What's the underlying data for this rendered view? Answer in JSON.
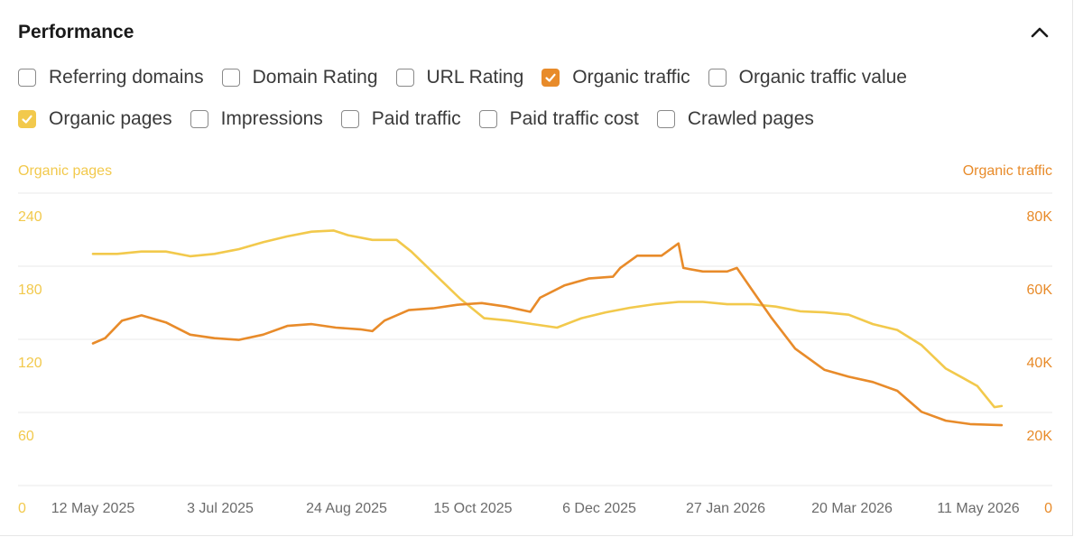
{
  "header": {
    "title": "Performance",
    "collapse_icon": "chevron-up-icon"
  },
  "checkboxes": [
    {
      "label": "Referring domains",
      "checked": false,
      "color": ""
    },
    {
      "label": "Domain Rating",
      "checked": false,
      "color": ""
    },
    {
      "label": "URL Rating",
      "checked": false,
      "color": ""
    },
    {
      "label": "Organic traffic",
      "checked": true,
      "color": "#e88b2a"
    },
    {
      "label": "Organic traffic value",
      "checked": false,
      "color": ""
    },
    {
      "label": "Organic pages",
      "checked": true,
      "color": "#f2c94c"
    },
    {
      "label": "Impressions",
      "checked": false,
      "color": ""
    },
    {
      "label": "Paid traffic",
      "checked": false,
      "color": ""
    },
    {
      "label": "Paid traffic cost",
      "checked": false,
      "color": ""
    },
    {
      "label": "Crawled pages",
      "checked": false,
      "color": ""
    }
  ],
  "chart_data": {
    "type": "line",
    "left_axis": {
      "label": "Organic pages",
      "ticks": [
        "0",
        "60",
        "120",
        "180",
        "240"
      ],
      "range": [
        0,
        270
      ],
      "color": "#f2c94c"
    },
    "right_axis": {
      "label": "Organic traffic",
      "ticks": [
        "0",
        "20K",
        "40K",
        "60K",
        "80K"
      ],
      "range": [
        0,
        90000
      ],
      "color": "#e88b2a"
    },
    "x_ticks": [
      "12 May 2025",
      "3 Jul 2025",
      "24 Aug 2025",
      "15 Oct 2025",
      "6 Dec 2025",
      "27 Jan 2026",
      "20 Mar 2026",
      "11 May 2026"
    ],
    "x_range": [
      "2025-05-12",
      "2026-05-11"
    ],
    "grid": true,
    "series": [
      {
        "name": "Organic pages",
        "axis": "left",
        "color": "#f2c94c",
        "points": [
          [
            "2025-05-12",
            198
          ],
          [
            "2025-05-22",
            198
          ],
          [
            "2025-06-01",
            200
          ],
          [
            "2025-06-11",
            200
          ],
          [
            "2025-06-21",
            196
          ],
          [
            "2025-07-01",
            198
          ],
          [
            "2025-07-11",
            202
          ],
          [
            "2025-07-21",
            208
          ],
          [
            "2025-07-31",
            213
          ],
          [
            "2025-08-10",
            217
          ],
          [
            "2025-08-19",
            218
          ],
          [
            "2025-08-25",
            214
          ],
          [
            "2025-09-04",
            210
          ],
          [
            "2025-09-14",
            210
          ],
          [
            "2025-09-20",
            200
          ],
          [
            "2025-09-30",
            180
          ],
          [
            "2025-10-10",
            160
          ],
          [
            "2025-10-20",
            143
          ],
          [
            "2025-10-30",
            141
          ],
          [
            "2025-11-09",
            138
          ],
          [
            "2025-11-19",
            135
          ],
          [
            "2025-11-29",
            143
          ],
          [
            "2025-12-09",
            148
          ],
          [
            "2025-12-19",
            152
          ],
          [
            "2025-12-29",
            155
          ],
          [
            "2026-01-08",
            157
          ],
          [
            "2026-01-18",
            157
          ],
          [
            "2026-01-28",
            155
          ],
          [
            "2026-02-07",
            155
          ],
          [
            "2026-02-17",
            153
          ],
          [
            "2026-02-27",
            149
          ],
          [
            "2026-03-09",
            148
          ],
          [
            "2026-03-19",
            146
          ],
          [
            "2026-03-29",
            138
          ],
          [
            "2026-04-08",
            133
          ],
          [
            "2026-04-18",
            120
          ],
          [
            "2026-04-28",
            100
          ],
          [
            "2026-05-05",
            92
          ],
          [
            "2026-05-11",
            85
          ],
          [
            "2026-05-18",
            67
          ],
          [
            "2026-05-21",
            68
          ]
        ]
      },
      {
        "name": "Organic traffic",
        "axis": "right",
        "color": "#e88b2a",
        "points": [
          [
            "2025-05-12",
            40500
          ],
          [
            "2025-05-17",
            42000
          ],
          [
            "2025-05-24",
            47000
          ],
          [
            "2025-06-01",
            48500
          ],
          [
            "2025-06-11",
            46500
          ],
          [
            "2025-06-21",
            43000
          ],
          [
            "2025-07-01",
            42000
          ],
          [
            "2025-07-11",
            41500
          ],
          [
            "2025-07-21",
            43000
          ],
          [
            "2025-07-31",
            45500
          ],
          [
            "2025-08-10",
            46000
          ],
          [
            "2025-08-20",
            45000
          ],
          [
            "2025-08-30",
            44500
          ],
          [
            "2025-09-04",
            44000
          ],
          [
            "2025-09-09",
            47000
          ],
          [
            "2025-09-19",
            50000
          ],
          [
            "2025-09-29",
            50500
          ],
          [
            "2025-10-09",
            51500
          ],
          [
            "2025-10-19",
            52000
          ],
          [
            "2025-10-29",
            51000
          ],
          [
            "2025-11-08",
            49500
          ],
          [
            "2025-11-12",
            53500
          ],
          [
            "2025-11-22",
            57000
          ],
          [
            "2025-12-02",
            59000
          ],
          [
            "2025-12-12",
            59500
          ],
          [
            "2025-12-15",
            62000
          ],
          [
            "2025-12-22",
            65500
          ],
          [
            "2026-01-01",
            65500
          ],
          [
            "2026-01-08",
            69000
          ],
          [
            "2026-01-10",
            62000
          ],
          [
            "2026-01-18",
            61000
          ],
          [
            "2026-01-28",
            61000
          ],
          [
            "2026-02-01",
            62000
          ],
          [
            "2026-02-07",
            56000
          ],
          [
            "2026-02-15",
            48000
          ],
          [
            "2026-02-25",
            39000
          ],
          [
            "2026-03-09",
            33000
          ],
          [
            "2026-03-19",
            31000
          ],
          [
            "2026-03-29",
            29500
          ],
          [
            "2026-04-08",
            27000
          ],
          [
            "2026-04-18",
            21000
          ],
          [
            "2026-04-28",
            18500
          ],
          [
            "2026-05-08",
            17500
          ],
          [
            "2026-05-21",
            17200
          ]
        ]
      }
    ]
  }
}
